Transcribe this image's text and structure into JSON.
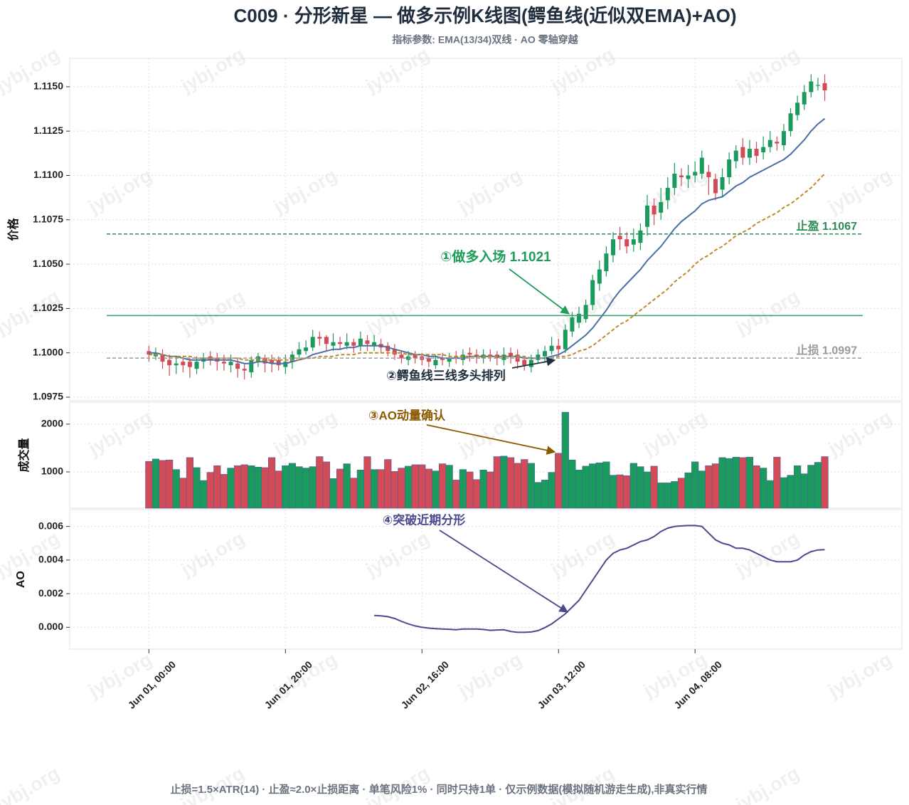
{
  "title": "C009 · 分形新星 — 做多示例K线图(鳄鱼线(近似双EMA)+AO)",
  "subtitle": "指标参数: EMA(13/34)双线 · AO 零轴穿越",
  "footer": "止损=1.5×ATR(14) · 止盈≈2.0×止损距离 · 单笔风险1% · 同时只持1单 · 仅示例数据(模拟随机游走生成),非真实行情",
  "watermark": "jybj.org",
  "chart_data": [
    {
      "type": "candlestick",
      "ylabel": "价格",
      "x": [
        0,
        1,
        2,
        3,
        4,
        5,
        6,
        7,
        8,
        9,
        10,
        11,
        12,
        13,
        14,
        15,
        16,
        17,
        18,
        19,
        20,
        21,
        22,
        23,
        24,
        25,
        26,
        27,
        28,
        29,
        30,
        31,
        32,
        33,
        34,
        35,
        36,
        37,
        38,
        39,
        40,
        41,
        42,
        43,
        44,
        45,
        46,
        47,
        48,
        49,
        50,
        51,
        52,
        53,
        54,
        55,
        56,
        57,
        58,
        59,
        60,
        61,
        62,
        63,
        64,
        65,
        66,
        67,
        68,
        69,
        70,
        71,
        72,
        73,
        74,
        75,
        76,
        77,
        78,
        79,
        80,
        81,
        82,
        83,
        84,
        85,
        86,
        87,
        88,
        89,
        90,
        91,
        92,
        93,
        94,
        95,
        96,
        97,
        98,
        99
      ],
      "open": [
        1.1001,
        1.0998,
        1.0999,
        1.0996,
        1.0993,
        1.0995,
        1.0995,
        1.0991,
        1.0995,
        1.0998,
        1.0997,
        1.0995,
        1.0993,
        1.0994,
        1.0991,
        1.0989,
        1.0995,
        1.0997,
        1.0996,
        1.0996,
        1.0992,
        1.0995,
        1.0999,
        1.1001,
        1.1003,
        1.1009,
        1.1009,
        1.1004,
        1.1006,
        1.1004,
        1.1006,
        1.1004,
        1.1007,
        1.1004,
        1.1005,
        1.1004,
        1.1002,
        1.0999,
        1.0996,
        1.0999,
        1.0998,
        1.0997,
        1.0993,
        1.0997,
        1.0995,
        1.0998,
        1.0996,
        1.1,
        1.0999,
        1.0997,
        1.0999,
        1.0999,
        1.0996,
        1.1,
        1.0999,
        1.0996,
        1.0992,
        1.0996,
        1.0998,
        1.1001,
        1.1004,
        1.1002,
        1.1012,
        1.1017,
        1.1019,
        1.1027,
        1.1039,
        1.1046,
        1.1055,
        1.1066,
        1.1064,
        1.1061,
        1.1062,
        1.1071,
        1.1083,
        1.1079,
        1.1086,
        1.1093,
        1.11,
        1.1098,
        1.11,
        1.1101,
        1.1102,
        1.1098,
        1.1092,
        1.1099,
        1.1108,
        1.1116,
        1.111,
        1.1115,
        1.1113,
        1.1116,
        1.1119,
        1.1117,
        1.1125,
        1.1134,
        1.114,
        1.1147,
        1.1151,
        1.1152
      ],
      "high": [
        1.1004,
        1.1003,
        1.1002,
        1.0999,
        1.0998,
        1.0998,
        1.0997,
        1.0998,
        1.1,
        1.1001,
        1.1,
        1.0999,
        1.0999,
        1.0997,
        1.0994,
        1.0998,
        1.1,
        1.0999,
        1.0999,
        1.0998,
        1.0999,
        1.1001,
        1.1006,
        1.1007,
        1.1013,
        1.1012,
        1.101,
        1.1011,
        1.1009,
        1.1011,
        1.1008,
        1.1012,
        1.101,
        1.101,
        1.1008,
        1.1006,
        1.1005,
        1.1001,
        1.1001,
        1.1001,
        1.1,
        1.0999,
        1.0999,
        1.1,
        1.1,
        1.1001,
        1.1002,
        1.1003,
        1.1002,
        1.1002,
        1.1002,
        1.1001,
        1.1003,
        1.1003,
        1.1002,
        1.0998,
        1.0999,
        1.1002,
        1.1004,
        1.1009,
        1.1008,
        1.1016,
        1.1023,
        1.1026,
        1.103,
        1.1044,
        1.1052,
        1.106,
        1.1068,
        1.1071,
        1.1068,
        1.107,
        1.1073,
        1.1089,
        1.1087,
        1.1093,
        1.1099,
        1.1107,
        1.1104,
        1.1106,
        1.1108,
        1.1114,
        1.1106,
        1.1101,
        1.1104,
        1.1113,
        1.1117,
        1.1121,
        1.112,
        1.1119,
        1.1122,
        1.1125,
        1.1122,
        1.1129,
        1.1138,
        1.1145,
        1.1151,
        1.1157,
        1.1155,
        1.1157
      ],
      "low": [
        1.0995,
        1.0996,
        1.0991,
        1.0987,
        1.0988,
        1.0989,
        1.0986,
        1.0988,
        1.0991,
        1.0993,
        1.099,
        1.099,
        1.0989,
        1.0986,
        1.0985,
        1.0986,
        1.0992,
        1.0989,
        1.0989,
        1.099,
        1.0988,
        1.0991,
        1.0996,
        1.0999,
        1.1001,
        1.1004,
        1.1001,
        1.1001,
        1.1002,
        1.1002,
        1.1,
        1.1001,
        1.1001,
        1.1001,
        1.1,
        1.0998,
        1.0996,
        1.0994,
        1.0993,
        1.0994,
        1.0993,
        1.0992,
        1.0991,
        1.0993,
        1.0992,
        1.0994,
        1.0993,
        1.0995,
        1.0994,
        1.0994,
        1.0995,
        1.0993,
        1.0993,
        1.0994,
        1.0991,
        1.099,
        1.0989,
        1.0994,
        1.0995,
        1.0999,
        1.0998,
        1.1,
        1.1009,
        1.1014,
        1.1017,
        1.1024,
        1.1035,
        1.1043,
        1.1051,
        1.1058,
        1.1056,
        1.1057,
        1.1058,
        1.1066,
        1.1072,
        1.1075,
        1.1081,
        1.1089,
        1.1094,
        1.1093,
        1.1096,
        1.1098,
        1.1089,
        1.1086,
        1.1088,
        1.1095,
        1.1104,
        1.1106,
        1.1106,
        1.1107,
        1.1109,
        1.1113,
        1.1114,
        1.1114,
        1.1122,
        1.1131,
        1.1137,
        1.1144,
        1.1148,
        1.1142
      ],
      "close": [
        1.0999,
        1.1,
        1.0995,
        1.0993,
        1.0994,
        1.0993,
        1.0992,
        1.0995,
        1.0997,
        1.0996,
        1.0995,
        1.0994,
        1.0995,
        1.0991,
        1.099,
        1.0996,
        1.0998,
        1.0994,
        1.0994,
        1.0993,
        1.0995,
        1.0999,
        1.1002,
        1.1003,
        1.1009,
        1.1008,
        1.1005,
        1.1006,
        1.1005,
        1.1006,
        1.1004,
        1.1008,
        1.1005,
        1.1006,
        1.1003,
        1.1001,
        1.0999,
        1.0997,
        1.0998,
        1.0997,
        1.0996,
        1.0995,
        1.0996,
        1.0996,
        1.0997,
        1.0997,
        1.0999,
        1.0999,
        1.0998,
        1.0999,
        1.0998,
        1.0997,
        1.0999,
        1.0998,
        1.0995,
        1.0993,
        1.0996,
        1.0999,
        1.1001,
        1.1004,
        1.1002,
        1.1013,
        1.102,
        1.1022,
        1.1027,
        1.1041,
        1.1047,
        1.1056,
        1.1064,
        1.1064,
        1.106,
        1.1064,
        1.1069,
        1.1083,
        1.1078,
        1.1085,
        1.1093,
        1.1101,
        1.1099,
        1.11,
        1.1102,
        1.111,
        1.1099,
        1.109,
        1.1099,
        1.1109,
        1.1114,
        1.111,
        1.1115,
        1.1111,
        1.1116,
        1.112,
        1.1118,
        1.1125,
        1.1135,
        1.1141,
        1.1147,
        1.1153,
        1.1151,
        1.1148
      ],
      "up_color": "#1a9a5c",
      "down_color": "#d24b56",
      "lines": [
        {
          "color": "#4a6fa5",
          "dash": false,
          "values": [
            1.1,
            1.1,
            1.0999,
            1.0998,
            1.0998,
            1.0997,
            1.0996,
            1.0996,
            1.0996,
            1.0996,
            1.0996,
            1.0996,
            1.0996,
            1.0995,
            1.0994,
            1.0994,
            1.0995,
            1.0995,
            1.0994,
            1.0994,
            1.0994,
            1.0995,
            1.0996,
            1.0997,
            1.0999,
            1.1,
            1.1001,
            1.1002,
            1.1002,
            1.1003,
            1.1003,
            1.1004,
            1.1004,
            1.1004,
            1.1004,
            1.1003,
            1.1002,
            1.1001,
            1.1,
            1.0999,
            1.0999,
            1.0998,
            1.0998,
            1.0997,
            1.0997,
            1.0997,
            1.0997,
            1.0998,
            1.0998,
            1.0998,
            1.0998,
            1.0998,
            1.0998,
            1.0998,
            1.0998,
            1.0997,
            1.0997,
            1.0997,
            1.0997,
            1.0998,
            1.0999,
            1.1001,
            1.1004,
            1.1007,
            1.101,
            1.1014,
            1.1019,
            1.1024,
            1.103,
            1.1035,
            1.1039,
            1.1043,
            1.1047,
            1.1052,
            1.1056,
            1.106,
            1.1065,
            1.107,
            1.1074,
            1.1077,
            1.108,
            1.1084,
            1.1086,
            1.1087,
            1.1088,
            1.1091,
            1.1094,
            1.1096,
            1.1099,
            1.1101,
            1.1103,
            1.1105,
            1.1107,
            1.1109,
            1.1112,
            1.1116,
            1.112,
            1.1125,
            1.1129,
            1.1132
          ]
        },
        {
          "color": "#c08a2a",
          "dash": true,
          "values": [
            1.0999,
            1.0999,
            1.0999,
            1.0998,
            1.0998,
            1.0998,
            1.0998,
            1.0997,
            1.0997,
            1.0997,
            1.0997,
            1.0997,
            1.0997,
            1.0997,
            1.0996,
            1.0996,
            1.0996,
            1.0996,
            1.0996,
            1.0996,
            1.0996,
            1.0996,
            1.0996,
            1.0997,
            1.0997,
            1.0998,
            1.0998,
            1.0998,
            1.0999,
            1.0999,
            1.0999,
            1.1,
            1.1,
            1.1,
            1.1,
            1.1,
            1.1,
            1.1,
            1.0999,
            1.0999,
            1.0999,
            1.0999,
            1.0999,
            1.0999,
            1.0998,
            1.0998,
            1.0998,
            1.0998,
            1.0998,
            1.0998,
            1.0998,
            1.0998,
            1.0998,
            1.0998,
            1.0998,
            1.0998,
            1.0997,
            1.0997,
            1.0997,
            1.0997,
            1.0998,
            1.0998,
            1.0999,
            1.1001,
            1.1002,
            1.1004,
            1.1007,
            1.101,
            1.1013,
            1.1016,
            1.1018,
            1.1021,
            1.1024,
            1.1027,
            1.103,
            1.1033,
            1.1036,
            1.104,
            1.1043,
            1.1046,
            1.105,
            1.1053,
            1.1055,
            1.1058,
            1.106,
            1.1063,
            1.1066,
            1.1068,
            1.107,
            1.1073,
            1.1075,
            1.1077,
            1.1079,
            1.1082,
            1.1084,
            1.1087,
            1.109,
            1.1093,
            1.1097,
            1.1101
          ]
        }
      ],
      "hlines": [
        {
          "value": 1.1067,
          "label": "止盈 1.1067",
          "color": "#2e8b57",
          "dash": true
        },
        {
          "value": 1.1021,
          "color": "#3aa06a",
          "dash": false
        },
        {
          "value": 1.0997,
          "label": "止损 1.0997",
          "color": "#9a9a9a",
          "dash": true
        }
      ],
      "annotations": [
        {
          "text": "①做多入场 1.1021",
          "color": "#1e9e5a"
        },
        {
          "text": "②鳄鱼线三线多头排列",
          "color": "#1f2d3d"
        }
      ],
      "ylim": [
        1.0973,
        1.1166
      ],
      "yticks": [
        1.0975,
        {
          "value": 1.1,
          "label": "1.1000"
        },
        1.1025,
        {
          "value": 1.105,
          "label": "1.1050"
        },
        1.1075,
        {
          "value": 1.11,
          "label": "1.1100"
        },
        1.1125,
        {
          "value": 1.115,
          "label": "1.1150"
        }
      ],
      "grid": true
    },
    {
      "type": "bar",
      "ylabel": "成交量",
      "values": [
        1220,
        1270,
        1240,
        1250,
        1050,
        870,
        1300,
        1090,
        820,
        990,
        1130,
        950,
        1080,
        1130,
        1150,
        1130,
        1100,
        1090,
        1300,
        1020,
        1130,
        1180,
        1110,
        1080,
        1110,
        1320,
        1210,
        860,
        1060,
        1170,
        870,
        1040,
        1320,
        1050,
        1050,
        1260,
        1010,
        1080,
        1120,
        1150,
        1150,
        1060,
        1020,
        1170,
        1140,
        830,
        1050,
        1000,
        840,
        1040,
        1000,
        1320,
        1330,
        1300,
        1180,
        1260,
        1180,
        780,
        830,
        990,
        1390,
        2250,
        1250,
        1040,
        1120,
        1170,
        1190,
        1210,
        930,
        940,
        920,
        1180,
        1110,
        1000,
        1120,
        770,
        770,
        800,
        870,
        980,
        1210,
        1020,
        1130,
        1170,
        1300,
        1280,
        1310,
        1300,
        1310,
        1130,
        1080,
        820,
        1310,
        880,
        930,
        1130,
        960,
        1140,
        1200,
        1320
      ],
      "annotations": [
        {
          "text": "③AO动量确认",
          "color": "#8b5a00"
        }
      ],
      "ylim": [
        240,
        2460
      ],
      "yticks": [
        1000,
        2000
      ],
      "grid": true
    },
    {
      "type": "line",
      "ylabel": "AO",
      "color": "#4b4a8f",
      "values": [
        null,
        null,
        null,
        null,
        null,
        null,
        null,
        null,
        null,
        null,
        null,
        null,
        null,
        null,
        null,
        null,
        null,
        null,
        null,
        null,
        null,
        null,
        null,
        null,
        null,
        null,
        null,
        null,
        null,
        null,
        null,
        null,
        null,
        0.0007,
        0.00068,
        0.00063,
        0.00052,
        0.00035,
        0.0002,
        8e-05,
        0.0,
        -5e-05,
        -8e-05,
        -0.0001,
        -0.00012,
        -0.00015,
        -0.0001,
        -0.0001,
        -0.0001,
        -0.00013,
        -0.00018,
        -0.00016,
        -0.00015,
        -0.00025,
        -0.0003,
        -0.0003,
        -0.00028,
        -0.0002,
        -2e-05,
        0.0002,
        0.0005,
        0.0008,
        0.0012,
        0.0016,
        0.0022,
        0.0028,
        0.0034,
        0.004,
        0.0044,
        0.0046,
        0.0047,
        0.0049,
        0.0051,
        0.0052,
        0.0054,
        0.0057,
        0.0059,
        0.006,
        0.00603,
        0.00605,
        0.00605,
        0.006,
        0.0056,
        0.0052,
        0.005,
        0.0049,
        0.0047,
        0.0047,
        0.0046,
        0.0044,
        0.0042,
        0.004,
        0.0039,
        0.0039,
        0.0039,
        0.004,
        0.0043,
        0.0045,
        0.0046,
        0.00462
      ],
      "annotations": [
        {
          "text": "④突破近期分形",
          "color": "#4b4a8f"
        }
      ],
      "ylim": [
        -0.0013,
        0.007
      ],
      "yticks": [
        {
          "value": 0,
          "label": "0.000"
        },
        0.002,
        0.004,
        0.006
      ],
      "xlim": [
        -11.6,
        110.3
      ],
      "xticks": [
        {
          "value": 0,
          "label": "Jun 01, 00:00"
        },
        {
          "value": 20,
          "label": "Jun 01, 20:00"
        },
        {
          "value": 40,
          "label": "Jun 02, 16:00"
        },
        {
          "value": 60,
          "label": "Jun 03, 12:00"
        },
        {
          "value": 80,
          "label": "Jun 04, 08:00"
        }
      ],
      "grid": true
    }
  ]
}
